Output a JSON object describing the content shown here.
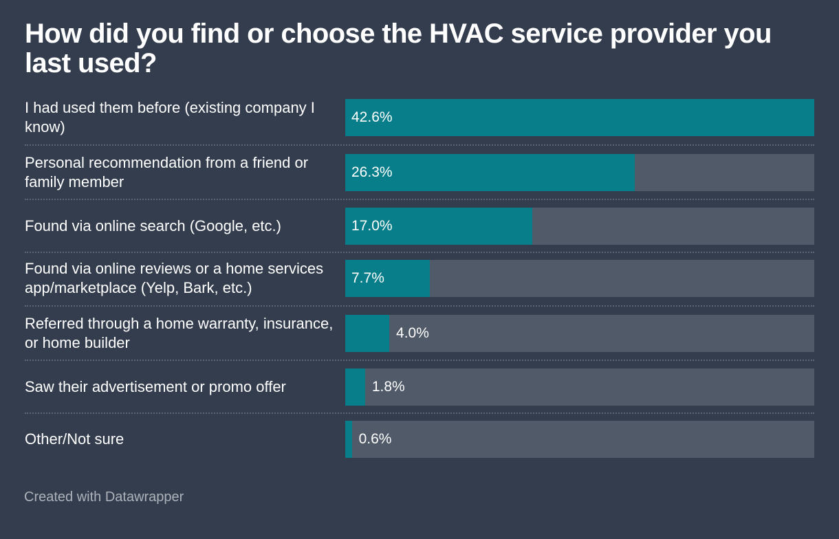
{
  "chart_data": {
    "type": "bar",
    "orientation": "horizontal",
    "title": "How did you find or choose the HVAC service provider you last used?",
    "categories": [
      "I had used them before (existing company I know)",
      "Personal recommendation from a friend or family member",
      "Found via online search (Google, etc.)",
      "Found via online reviews or a home services app/marketplace (Yelp, Bark, etc.)",
      "Referred through a home warranty, insurance, or home builder",
      "Saw their advertisement or promo offer",
      "Other/Not sure"
    ],
    "values": [
      42.6,
      26.3,
      17.0,
      7.7,
      4.0,
      1.8,
      0.6
    ],
    "value_labels": [
      "42.6%",
      "26.3%",
      "17.0%",
      "7.7%",
      "4.0%",
      "1.8%",
      "0.6%"
    ],
    "xlim": [
      0,
      42.6
    ],
    "colors": {
      "background": "#333d4d",
      "bar": "#087e8b",
      "track": "#515a69",
      "separator": "#5c6677",
      "credit": "#aeb3bb"
    }
  },
  "footer": {
    "credit": "Created with Datawrapper"
  }
}
